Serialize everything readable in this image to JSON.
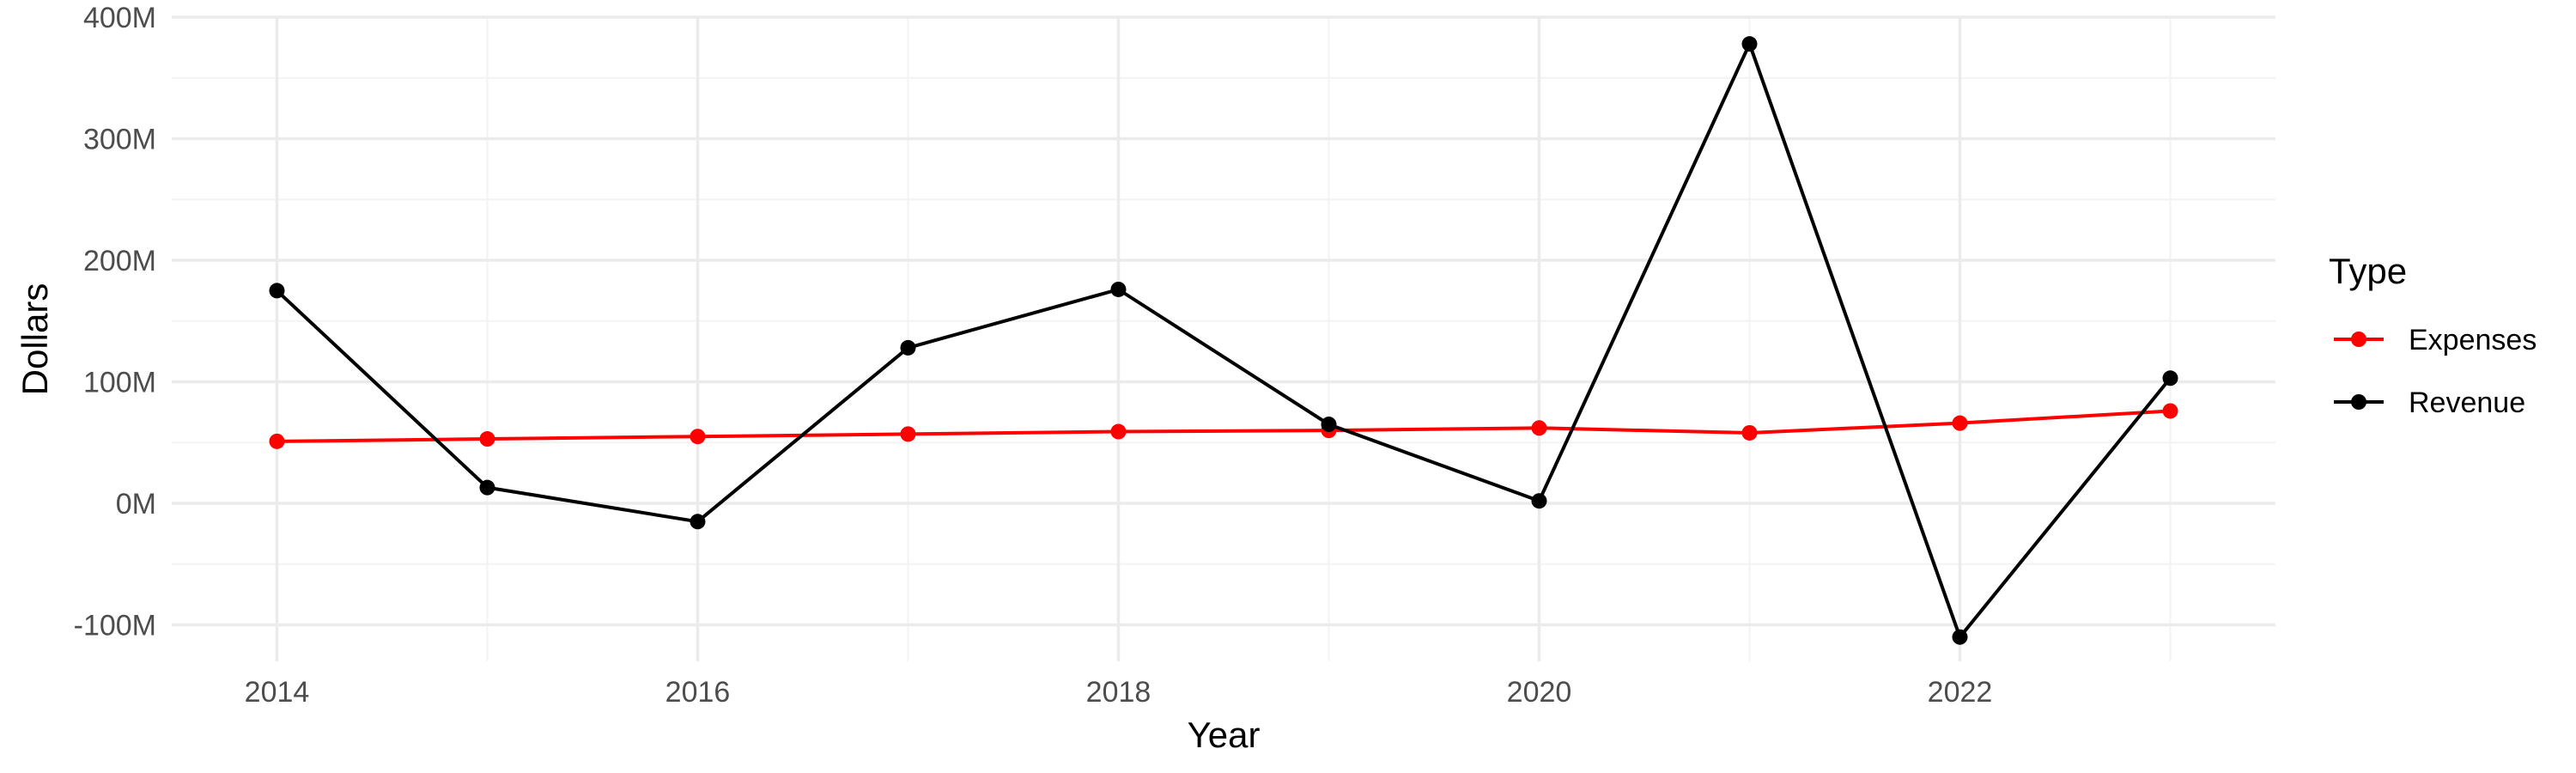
{
  "chart_data": {
    "type": "line",
    "title": "",
    "xlabel": "Year",
    "ylabel": "Dollars",
    "x": [
      2014,
      2015,
      2016,
      2017,
      2018,
      2019,
      2020,
      2021,
      2022,
      2023
    ],
    "xlim": [
      2013.5,
      2023.5
    ],
    "ylim": [
      -130,
      400
    ],
    "x_ticks": [
      2014,
      2016,
      2018,
      2020,
      2022
    ],
    "x_tick_labels": [
      "2014",
      "2016",
      "2018",
      "2020",
      "2022"
    ],
    "y_ticks": [
      -100,
      0,
      100,
      200,
      300,
      400
    ],
    "y_tick_labels": [
      "-100M",
      "0M",
      "100M",
      "200M",
      "300M",
      "400M"
    ],
    "grid": true,
    "legend": {
      "title": "Type",
      "position": "right"
    },
    "series": [
      {
        "name": "Expenses",
        "color": "#ff0000",
        "values": [
          51,
          53,
          55,
          57,
          59,
          60,
          62,
          58,
          66,
          76
        ]
      },
      {
        "name": "Revenue",
        "color": "#000000",
        "values": [
          175,
          13,
          -15,
          128,
          176,
          65,
          2,
          378,
          -110,
          103
        ]
      }
    ]
  }
}
